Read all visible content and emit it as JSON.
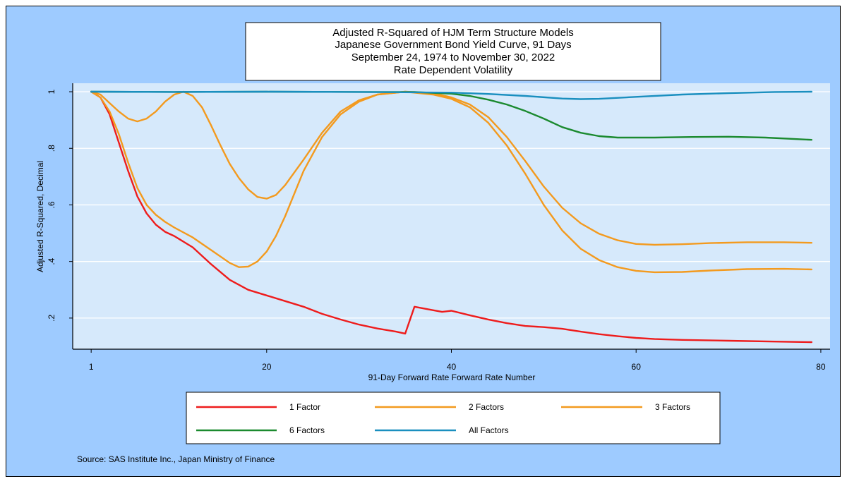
{
  "chart_data": {
    "type": "line",
    "title_lines": [
      "Adjusted R-Squared of HJM Term Structure Models",
      "Japanese Government Bond Yield Curve, 91 Days",
      "September 24, 1974 to November 30, 2022",
      "Rate Dependent Volatility"
    ],
    "xlabel": "91-Day Forward Rate Forward Rate Number",
    "ylabel": "Adjusted R-Squared, Decimal",
    "xlim": [
      -1,
      81
    ],
    "ylim": [
      0.09,
      1.03
    ],
    "xticks": [
      1,
      20,
      40,
      60,
      80
    ],
    "xtick_labels": [
      "1",
      "20",
      "40",
      "60",
      "80"
    ],
    "yticks": [
      0.2,
      0.4,
      0.6,
      0.8,
      1.0
    ],
    "ytick_labels": [
      ".2",
      ".4",
      ".6",
      ".8",
      "1"
    ],
    "grid": true,
    "legend_position": "bottom",
    "source": "Source: SAS Institute Inc., Japan Ministry of Finance",
    "series": [
      {
        "name": "1 Factor",
        "color": "#ee1c1c",
        "points": [
          [
            1,
            1.0
          ],
          [
            2,
            0.98
          ],
          [
            3,
            0.92
          ],
          [
            4,
            0.82
          ],
          [
            5,
            0.72
          ],
          [
            6,
            0.63
          ],
          [
            7,
            0.57
          ],
          [
            8,
            0.53
          ],
          [
            9,
            0.505
          ],
          [
            10,
            0.49
          ],
          [
            11,
            0.47
          ],
          [
            12,
            0.45
          ],
          [
            14,
            0.39
          ],
          [
            16,
            0.335
          ],
          [
            18,
            0.3
          ],
          [
            20,
            0.28
          ],
          [
            22,
            0.26
          ],
          [
            24,
            0.24
          ],
          [
            26,
            0.215
          ],
          [
            28,
            0.195
          ],
          [
            30,
            0.177
          ],
          [
            32,
            0.163
          ],
          [
            34,
            0.152
          ],
          [
            35,
            0.145
          ],
          [
            36,
            0.24
          ],
          [
            38,
            0.228
          ],
          [
            39,
            0.222
          ],
          [
            40,
            0.226
          ],
          [
            42,
            0.21
          ],
          [
            44,
            0.195
          ],
          [
            46,
            0.182
          ],
          [
            48,
            0.172
          ],
          [
            50,
            0.168
          ],
          [
            52,
            0.162
          ],
          [
            54,
            0.152
          ],
          [
            56,
            0.143
          ],
          [
            58,
            0.136
          ],
          [
            60,
            0.13
          ],
          [
            62,
            0.126
          ],
          [
            65,
            0.123
          ],
          [
            70,
            0.12
          ],
          [
            75,
            0.117
          ],
          [
            79,
            0.115
          ]
        ]
      },
      {
        "name": "2 Factors",
        "color": "#f39a1e",
        "points": [
          [
            1,
            1.0
          ],
          [
            2,
            0.98
          ],
          [
            3,
            0.93
          ],
          [
            4,
            0.85
          ],
          [
            5,
            0.75
          ],
          [
            6,
            0.66
          ],
          [
            7,
            0.6
          ],
          [
            8,
            0.565
          ],
          [
            9,
            0.54
          ],
          [
            10,
            0.52
          ],
          [
            12,
            0.485
          ],
          [
            14,
            0.44
          ],
          [
            16,
            0.395
          ],
          [
            17,
            0.38
          ],
          [
            18,
            0.382
          ],
          [
            19,
            0.4
          ],
          [
            20,
            0.435
          ],
          [
            21,
            0.49
          ],
          [
            22,
            0.56
          ],
          [
            24,
            0.72
          ],
          [
            26,
            0.84
          ],
          [
            28,
            0.92
          ],
          [
            30,
            0.965
          ],
          [
            32,
            0.99
          ],
          [
            35,
            1.0
          ],
          [
            38,
            0.99
          ],
          [
            40,
            0.975
          ],
          [
            42,
            0.945
          ],
          [
            44,
            0.89
          ],
          [
            46,
            0.81
          ],
          [
            48,
            0.71
          ],
          [
            50,
            0.6
          ],
          [
            52,
            0.51
          ],
          [
            54,
            0.445
          ],
          [
            56,
            0.405
          ],
          [
            58,
            0.38
          ],
          [
            60,
            0.367
          ],
          [
            62,
            0.362
          ],
          [
            65,
            0.363
          ],
          [
            68,
            0.368
          ],
          [
            72,
            0.373
          ],
          [
            76,
            0.374
          ],
          [
            79,
            0.372
          ]
        ]
      },
      {
        "name": "3 Factors",
        "color": "#f39a1e",
        "points": [
          [
            1,
            1.0
          ],
          [
            2,
            0.99
          ],
          [
            3,
            0.96
          ],
          [
            4,
            0.93
          ],
          [
            5,
            0.905
          ],
          [
            6,
            0.895
          ],
          [
            7,
            0.905
          ],
          [
            8,
            0.93
          ],
          [
            9,
            0.965
          ],
          [
            10,
            0.99
          ],
          [
            11,
            1.0
          ],
          [
            12,
            0.985
          ],
          [
            13,
            0.945
          ],
          [
            14,
            0.88
          ],
          [
            15,
            0.81
          ],
          [
            16,
            0.745
          ],
          [
            17,
            0.695
          ],
          [
            18,
            0.655
          ],
          [
            19,
            0.628
          ],
          [
            20,
            0.622
          ],
          [
            21,
            0.635
          ],
          [
            22,
            0.67
          ],
          [
            24,
            0.76
          ],
          [
            26,
            0.855
          ],
          [
            28,
            0.93
          ],
          [
            30,
            0.97
          ],
          [
            32,
            0.99
          ],
          [
            35,
            1.0
          ],
          [
            38,
            0.995
          ],
          [
            40,
            0.98
          ],
          [
            42,
            0.955
          ],
          [
            44,
            0.91
          ],
          [
            46,
            0.84
          ],
          [
            48,
            0.755
          ],
          [
            50,
            0.665
          ],
          [
            52,
            0.59
          ],
          [
            54,
            0.535
          ],
          [
            56,
            0.498
          ],
          [
            58,
            0.475
          ],
          [
            60,
            0.462
          ],
          [
            62,
            0.459
          ],
          [
            65,
            0.461
          ],
          [
            68,
            0.465
          ],
          [
            72,
            0.468
          ],
          [
            76,
            0.468
          ],
          [
            79,
            0.466
          ]
        ]
      },
      {
        "name": "6 Factors",
        "color": "#1b8a2f",
        "points": [
          [
            1,
            1.0
          ],
          [
            10,
            0.999
          ],
          [
            20,
            1.0
          ],
          [
            30,
            0.999
          ],
          [
            36,
            0.999
          ],
          [
            40,
            0.993
          ],
          [
            42,
            0.985
          ],
          [
            44,
            0.972
          ],
          [
            46,
            0.955
          ],
          [
            48,
            0.932
          ],
          [
            50,
            0.905
          ],
          [
            52,
            0.875
          ],
          [
            54,
            0.855
          ],
          [
            56,
            0.843
          ],
          [
            58,
            0.838
          ],
          [
            62,
            0.838
          ],
          [
            66,
            0.84
          ],
          [
            70,
            0.841
          ],
          [
            74,
            0.838
          ],
          [
            79,
            0.83
          ]
        ]
      },
      {
        "name": "All Factors",
        "color": "#1a8fbf",
        "points": [
          [
            1,
            1.0
          ],
          [
            10,
            0.999
          ],
          [
            20,
            1.0
          ],
          [
            30,
            0.999
          ],
          [
            40,
            0.997
          ],
          [
            44,
            0.992
          ],
          [
            48,
            0.985
          ],
          [
            52,
            0.976
          ],
          [
            54,
            0.974
          ],
          [
            56,
            0.975
          ],
          [
            60,
            0.982
          ],
          [
            65,
            0.99
          ],
          [
            70,
            0.995
          ],
          [
            75,
            0.999
          ],
          [
            79,
            1.0
          ]
        ]
      }
    ]
  }
}
